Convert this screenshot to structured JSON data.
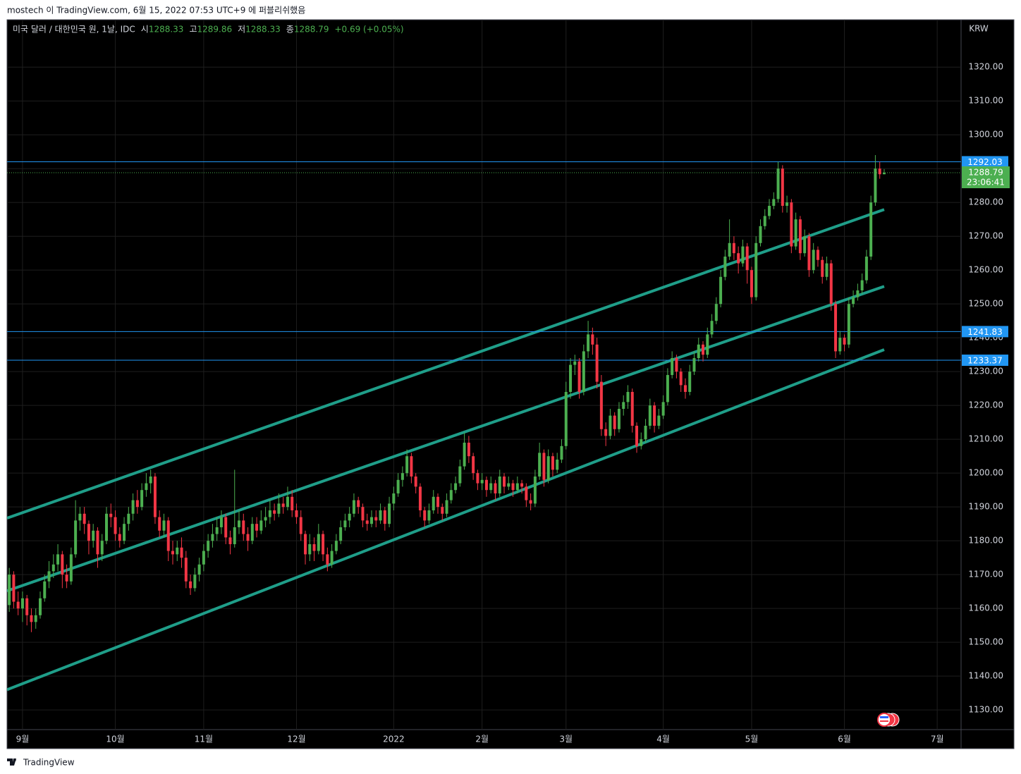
{
  "header": {
    "published": "mostech 이 TradingView.com, 6월 15, 2022 07:53 UTC+9 에 퍼블리쉬했음"
  },
  "footer": {
    "brand": "TradingView"
  },
  "chart_data": {
    "type": "candlestick",
    "legend": {
      "symbol": "미국 달러 / 대한민국 원, 1날, IDC",
      "open_label": "시",
      "high_label": "고",
      "low_label": "저",
      "close_label": "종",
      "change": "+0.69 (+0.05%)"
    },
    "currency": "KRW",
    "countdown": "23:06:41",
    "up_color": "#4caf50",
    "down_color": "#f23645",
    "trend_color": "#1f9e89",
    "hline_color": "#2196f3",
    "grid": true,
    "xlim": [
      -0.5,
      215.4
    ],
    "ylim": [
      1124.2,
      1334
    ],
    "xticks": [
      {
        "value": 3,
        "label": "9월"
      },
      {
        "value": 24,
        "label": "10월"
      },
      {
        "value": 44,
        "label": "11월"
      },
      {
        "value": 65,
        "label": "12월"
      },
      {
        "value": 87,
        "label": "2022"
      },
      {
        "value": 107,
        "label": "2월"
      },
      {
        "value": 126,
        "label": "3월"
      },
      {
        "value": 148,
        "label": "4월"
      },
      {
        "value": 168,
        "label": "5월"
      },
      {
        "value": 189,
        "label": "6월"
      },
      {
        "value": 210,
        "label": "7월"
      }
    ],
    "yticks": [
      {
        "value": 1130,
        "label": "1130.00"
      },
      {
        "value": 1140,
        "label": "1140.00"
      },
      {
        "value": 1150,
        "label": "1150.00"
      },
      {
        "value": 1160,
        "label": "1160.00"
      },
      {
        "value": 1170,
        "label": "1170.00"
      },
      {
        "value": 1180,
        "label": "1180.00"
      },
      {
        "value": 1190,
        "label": "1190.00"
      },
      {
        "value": 1200,
        "label": "1200.00"
      },
      {
        "value": 1210,
        "label": "1210.00"
      },
      {
        "value": 1220,
        "label": "1220.00"
      },
      {
        "value": 1230,
        "label": "1230.00"
      },
      {
        "value": 1240,
        "label": "1240.00"
      },
      {
        "value": 1250,
        "label": "1250.00"
      },
      {
        "value": 1260,
        "label": "1260.00"
      },
      {
        "value": 1270,
        "label": "1270.00"
      },
      {
        "value": 1280,
        "label": "1280.00"
      },
      {
        "value": 1290,
        "label": "1290.00"
      },
      {
        "value": 1300,
        "label": "1300.00"
      },
      {
        "value": 1310,
        "label": "1310.00"
      },
      {
        "value": 1320,
        "label": "1320.00"
      }
    ],
    "hlines": [
      1292.03,
      1241.83,
      1233.37
    ],
    "trend_lines": [
      {
        "x": [
          -0.5,
          198
        ],
        "y": [
          1186.7,
          1277.9
        ]
      },
      {
        "x": [
          -0.5,
          198
        ],
        "y": [
          1165.2,
          1255.2
        ]
      },
      {
        "x": [
          -0.5,
          198
        ],
        "y": [
          1136.0,
          1236.5
        ]
      }
    ],
    "ohlc": [
      [
        1161,
        1172,
        1159,
        1170
      ],
      [
        1170,
        1171,
        1160,
        1162
      ],
      [
        1162,
        1165,
        1158,
        1160
      ],
      [
        1160,
        1165,
        1156,
        1163
      ],
      [
        1163,
        1164,
        1155,
        1158
      ],
      [
        1158,
        1160,
        1153,
        1156
      ],
      [
        1156,
        1160,
        1154,
        1158
      ],
      [
        1158,
        1165,
        1157,
        1163
      ],
      [
        1163,
        1170,
        1162,
        1168
      ],
      [
        1168,
        1174,
        1166,
        1171
      ],
      [
        1171,
        1176,
        1169,
        1173
      ],
      [
        1173,
        1179,
        1171,
        1176
      ],
      [
        1176,
        1177,
        1166,
        1170
      ],
      [
        1170,
        1173,
        1166,
        1168
      ],
      [
        1168,
        1178,
        1167,
        1176
      ],
      [
        1176,
        1192,
        1175,
        1186
      ],
      [
        1186,
        1190,
        1183,
        1188
      ],
      [
        1188,
        1190,
        1182,
        1185
      ],
      [
        1185,
        1186,
        1176,
        1180
      ],
      [
        1180,
        1185,
        1178,
        1183
      ],
      [
        1183,
        1184,
        1172,
        1176
      ],
      [
        1176,
        1182,
        1174,
        1180
      ],
      [
        1180,
        1190,
        1179,
        1188
      ],
      [
        1188,
        1191,
        1184,
        1187
      ],
      [
        1187,
        1189,
        1180,
        1182
      ],
      [
        1182,
        1184,
        1178,
        1180
      ],
      [
        1180,
        1187,
        1179,
        1185
      ],
      [
        1185,
        1190,
        1183,
        1188
      ],
      [
        1188,
        1194,
        1186,
        1192
      ],
      [
        1192,
        1195,
        1188,
        1190
      ],
      [
        1190,
        1197,
        1189,
        1195
      ],
      [
        1195,
        1200,
        1193,
        1197
      ],
      [
        1197,
        1201,
        1194,
        1199
      ],
      [
        1199,
        1200,
        1185,
        1187
      ],
      [
        1187,
        1189,
        1181,
        1183
      ],
      [
        1183,
        1188,
        1181,
        1186
      ],
      [
        1186,
        1187,
        1174,
        1177
      ],
      [
        1177,
        1180,
        1173,
        1176
      ],
      [
        1176,
        1180,
        1174,
        1178
      ],
      [
        1178,
        1181,
        1172,
        1175
      ],
      [
        1175,
        1177,
        1166,
        1168
      ],
      [
        1168,
        1170,
        1164,
        1166
      ],
      [
        1166,
        1172,
        1165,
        1170
      ],
      [
        1170,
        1175,
        1168,
        1173
      ],
      [
        1173,
        1179,
        1171,
        1177
      ],
      [
        1177,
        1182,
        1175,
        1180
      ],
      [
        1180,
        1185,
        1178,
        1182
      ],
      [
        1182,
        1187,
        1180,
        1184
      ],
      [
        1184,
        1189,
        1182,
        1187
      ],
      [
        1187,
        1188,
        1179,
        1181
      ],
      [
        1181,
        1183,
        1176,
        1179
      ],
      [
        1179,
        1201,
        1178,
        1184
      ],
      [
        1184,
        1189,
        1182,
        1186
      ],
      [
        1186,
        1188,
        1180,
        1182
      ],
      [
        1182,
        1184,
        1177,
        1180
      ],
      [
        1180,
        1187,
        1179,
        1185
      ],
      [
        1185,
        1187,
        1181,
        1183
      ],
      [
        1183,
        1189,
        1182,
        1186
      ],
      [
        1186,
        1190,
        1184,
        1187
      ],
      [
        1187,
        1192,
        1185,
        1189
      ],
      [
        1189,
        1191,
        1186,
        1188
      ],
      [
        1188,
        1194,
        1187,
        1191
      ],
      [
        1191,
        1193,
        1188,
        1190
      ],
      [
        1190,
        1196,
        1189,
        1193
      ],
      [
        1193,
        1195,
        1187,
        1189
      ],
      [
        1189,
        1191,
        1185,
        1187
      ],
      [
        1187,
        1189,
        1180,
        1182
      ],
      [
        1182,
        1183,
        1173,
        1176
      ],
      [
        1176,
        1182,
        1174,
        1179
      ],
      [
        1179,
        1181,
        1174,
        1177
      ],
      [
        1177,
        1185,
        1176,
        1182
      ],
      [
        1182,
        1183,
        1174,
        1176
      ],
      [
        1176,
        1178,
        1171,
        1173
      ],
      [
        1173,
        1179,
        1172,
        1177
      ],
      [
        1177,
        1182,
        1176,
        1180
      ],
      [
        1180,
        1186,
        1179,
        1184
      ],
      [
        1184,
        1188,
        1183,
        1186
      ],
      [
        1186,
        1190,
        1184,
        1188
      ],
      [
        1188,
        1194,
        1187,
        1192
      ],
      [
        1192,
        1193,
        1188,
        1190
      ],
      [
        1190,
        1191,
        1184,
        1186
      ],
      [
        1186,
        1188,
        1183,
        1185
      ],
      [
        1185,
        1189,
        1184,
        1187
      ],
      [
        1187,
        1189,
        1184,
        1186
      ],
      [
        1186,
        1191,
        1185,
        1189
      ],
      [
        1189,
        1190,
        1183,
        1185
      ],
      [
        1185,
        1193,
        1184,
        1191
      ],
      [
        1191,
        1196,
        1189,
        1194
      ],
      [
        1194,
        1200,
        1193,
        1198
      ],
      [
        1198,
        1202,
        1196,
        1200
      ],
      [
        1200,
        1207,
        1199,
        1205
      ],
      [
        1205,
        1206,
        1197,
        1199
      ],
      [
        1199,
        1200,
        1194,
        1196
      ],
      [
        1196,
        1197,
        1187,
        1189
      ],
      [
        1189,
        1190,
        1184,
        1186
      ],
      [
        1186,
        1191,
        1185,
        1189
      ],
      [
        1189,
        1195,
        1188,
        1193
      ],
      [
        1193,
        1194,
        1188,
        1190
      ],
      [
        1190,
        1191,
        1186,
        1188
      ],
      [
        1188,
        1194,
        1187,
        1192
      ],
      [
        1192,
        1197,
        1191,
        1195
      ],
      [
        1195,
        1199,
        1194,
        1197
      ],
      [
        1197,
        1204,
        1196,
        1202
      ],
      [
        1202,
        1212,
        1201,
        1209
      ],
      [
        1209,
        1211,
        1203,
        1205
      ],
      [
        1205,
        1206,
        1198,
        1200
      ],
      [
        1200,
        1201,
        1195,
        1197
      ],
      [
        1197,
        1200,
        1195,
        1198
      ],
      [
        1198,
        1199,
        1193,
        1195
      ],
      [
        1195,
        1199,
        1194,
        1197
      ],
      [
        1197,
        1198,
        1192,
        1194
      ],
      [
        1194,
        1201,
        1193,
        1199
      ],
      [
        1199,
        1200,
        1194,
        1196
      ],
      [
        1196,
        1199,
        1195,
        1197
      ],
      [
        1197,
        1198,
        1193,
        1195
      ],
      [
        1195,
        1199,
        1194,
        1197
      ],
      [
        1197,
        1198,
        1194,
        1196
      ],
      [
        1196,
        1197,
        1190,
        1192
      ],
      [
        1192,
        1194,
        1189,
        1191
      ],
      [
        1191,
        1201,
        1190,
        1199
      ],
      [
        1199,
        1209,
        1198,
        1206
      ],
      [
        1206,
        1207,
        1196,
        1198
      ],
      [
        1198,
        1207,
        1197,
        1205
      ],
      [
        1205,
        1206,
        1199,
        1201
      ],
      [
        1201,
        1206,
        1200,
        1204
      ],
      [
        1204,
        1210,
        1203,
        1208
      ],
      [
        1208,
        1227,
        1207,
        1224
      ],
      [
        1224,
        1234,
        1222,
        1232
      ],
      [
        1232,
        1235,
        1229,
        1233
      ],
      [
        1233,
        1234,
        1222,
        1224
      ],
      [
        1224,
        1238,
        1223,
        1236
      ],
      [
        1236,
        1245,
        1234,
        1241
      ],
      [
        1241,
        1243,
        1235,
        1238
      ],
      [
        1238,
        1240,
        1225,
        1227
      ],
      [
        1227,
        1229,
        1211,
        1213
      ],
      [
        1213,
        1215,
        1208,
        1211
      ],
      [
        1211,
        1219,
        1210,
        1217
      ],
      [
        1217,
        1218,
        1211,
        1213
      ],
      [
        1213,
        1221,
        1212,
        1219
      ],
      [
        1219,
        1223,
        1217,
        1221
      ],
      [
        1221,
        1226,
        1219,
        1224
      ],
      [
        1224,
        1225,
        1212,
        1214
      ],
      [
        1214,
        1215,
        1206,
        1208
      ],
      [
        1208,
        1212,
        1207,
        1210
      ],
      [
        1210,
        1216,
        1209,
        1214
      ],
      [
        1214,
        1222,
        1213,
        1220
      ],
      [
        1220,
        1221,
        1212,
        1214
      ],
      [
        1214,
        1219,
        1213,
        1217
      ],
      [
        1217,
        1223,
        1216,
        1221
      ],
      [
        1221,
        1231,
        1220,
        1229
      ],
      [
        1229,
        1236,
        1228,
        1234
      ],
      [
        1234,
        1235,
        1228,
        1230
      ],
      [
        1230,
        1231,
        1224,
        1226
      ],
      [
        1226,
        1228,
        1222,
        1224
      ],
      [
        1224,
        1232,
        1223,
        1230
      ],
      [
        1230,
        1236,
        1229,
        1234
      ],
      [
        1234,
        1240,
        1233,
        1238
      ],
      [
        1238,
        1239,
        1233,
        1235
      ],
      [
        1235,
        1243,
        1234,
        1241
      ],
      [
        1241,
        1247,
        1240,
        1245
      ],
      [
        1245,
        1252,
        1244,
        1250
      ],
      [
        1250,
        1260,
        1249,
        1258
      ],
      [
        1258,
        1266,
        1257,
        1264
      ],
      [
        1264,
        1275,
        1263,
        1268
      ],
      [
        1268,
        1270,
        1263,
        1265
      ],
      [
        1265,
        1267,
        1259,
        1262
      ],
      [
        1262,
        1269,
        1261,
        1267
      ],
      [
        1267,
        1268,
        1256,
        1260
      ],
      [
        1260,
        1261,
        1250,
        1252
      ],
      [
        1252,
        1270,
        1251,
        1268
      ],
      [
        1268,
        1275,
        1267,
        1273
      ],
      [
        1273,
        1278,
        1272,
        1276
      ],
      [
        1276,
        1281,
        1275,
        1279
      ],
      [
        1279,
        1283,
        1278,
        1281
      ],
      [
        1281,
        1292,
        1280,
        1290
      ],
      [
        1290,
        1291,
        1277,
        1279
      ],
      [
        1279,
        1282,
        1277,
        1280
      ],
      [
        1280,
        1281,
        1265,
        1267
      ],
      [
        1267,
        1277,
        1266,
        1275
      ],
      [
        1275,
        1276,
        1263,
        1265
      ],
      [
        1265,
        1272,
        1264,
        1270
      ],
      [
        1270,
        1271,
        1258,
        1260
      ],
      [
        1260,
        1268,
        1259,
        1266
      ],
      [
        1266,
        1267,
        1261,
        1263
      ],
      [
        1263,
        1264,
        1256,
        1258
      ],
      [
        1258,
        1264,
        1257,
        1262
      ],
      [
        1262,
        1263,
        1248,
        1250
      ],
      [
        1250,
        1251,
        1234,
        1236
      ],
      [
        1236,
        1242,
        1235,
        1240
      ],
      [
        1240,
        1241,
        1236,
        1238
      ],
      [
        1238,
        1252,
        1237,
        1250
      ],
      [
        1250,
        1254,
        1249,
        1252
      ],
      [
        1252,
        1256,
        1251,
        1254
      ],
      [
        1254,
        1259,
        1253,
        1257
      ],
      [
        1257,
        1266,
        1256,
        1264
      ],
      [
        1264,
        1282,
        1263,
        1280
      ],
      [
        1280,
        1294,
        1279,
        1290
      ],
      [
        1290,
        1292,
        1287,
        1288.33
      ],
      [
        1288.33,
        1289.86,
        1288.33,
        1288.79
      ]
    ]
  }
}
